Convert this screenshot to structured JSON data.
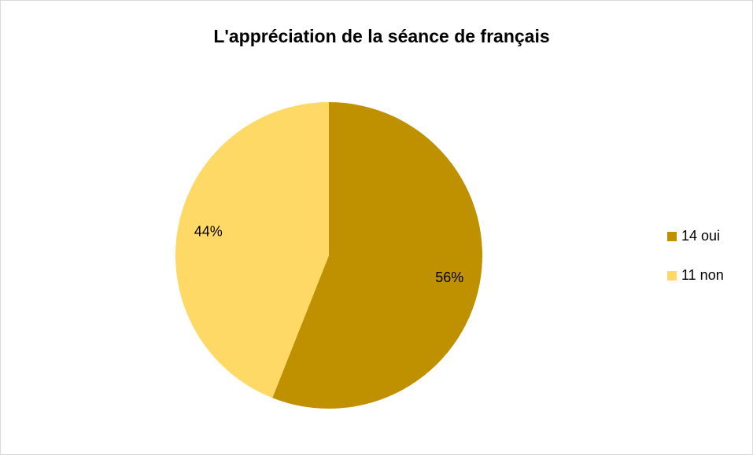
{
  "chart_data": {
    "type": "pie",
    "title": "L'appréciation de la séance de français",
    "categories": [
      "14 oui",
      "11 non"
    ],
    "values": [
      56,
      44
    ],
    "value_labels": [
      "56%",
      "44%"
    ],
    "colors": [
      "#bf9000",
      "#ffd966"
    ],
    "legend": "right"
  }
}
